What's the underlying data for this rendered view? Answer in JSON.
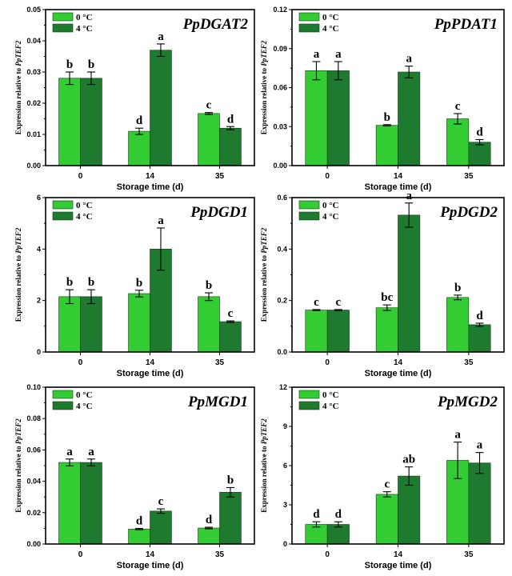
{
  "colors": {
    "light": "#33CC33",
    "dark": "#1E7A2E"
  },
  "chart_data": [
    {
      "type": "bar",
      "title": "PpDGAT2",
      "xlabel": "Storage time (d)",
      "ylabel_prefix": "Expression relative to ",
      "ylabel_gene": "PpTEF2",
      "categories": [
        "0",
        "14",
        "35"
      ],
      "ylim": [
        0,
        0.05
      ],
      "yticks": [
        "0.00",
        "0.01",
        "0.02",
        "0.03",
        "0.04",
        "0.05"
      ],
      "legend_position": "top-left",
      "series": [
        {
          "name": "0 °C",
          "values": [
            0.028,
            0.011,
            0.0167
          ],
          "errors": [
            0.002,
            0.001,
            0.0003
          ],
          "labels": [
            "b",
            "d",
            "c"
          ]
        },
        {
          "name": "4 °C",
          "values": [
            0.028,
            0.037,
            0.012
          ],
          "errors": [
            0.002,
            0.002,
            0.0005
          ],
          "labels": [
            "b",
            "a",
            "d"
          ]
        }
      ]
    },
    {
      "type": "bar",
      "title": "PpPDAT1",
      "xlabel": "Storage time (d)",
      "ylabel_prefix": "Expression relative to ",
      "ylabel_gene": "PpTEF2",
      "categories": [
        "0",
        "14",
        "35"
      ],
      "ylim": [
        0,
        0.12
      ],
      "yticks": [
        "0.00",
        "0.03",
        "0.06",
        "0.09",
        "0.12"
      ],
      "legend_position": "top-left",
      "series": [
        {
          "name": "0 °C",
          "values": [
            0.073,
            0.031,
            0.036
          ],
          "errors": [
            0.007,
            0.0005,
            0.004
          ],
          "labels": [
            "a",
            "b",
            "c"
          ]
        },
        {
          "name": "4 °C",
          "values": [
            0.073,
            0.072,
            0.018
          ],
          "errors": [
            0.007,
            0.0045,
            0.002
          ],
          "labels": [
            "a",
            "a",
            "d"
          ]
        }
      ]
    },
    {
      "type": "bar",
      "title": "PpDGD1",
      "xlabel": "Storage time (d)",
      "ylabel_prefix": "Expression relative to ",
      "ylabel_gene": "PpTEF2",
      "categories": [
        "0",
        "14",
        "35"
      ],
      "ylim": [
        0,
        6
      ],
      "yticks": [
        "0",
        "2",
        "4",
        "6"
      ],
      "legend_position": "top-left",
      "series": [
        {
          "name": "0 °C",
          "values": [
            2.15,
            2.27,
            2.15
          ],
          "errors": [
            0.27,
            0.13,
            0.15
          ],
          "labels": [
            "b",
            "b",
            "b"
          ]
        },
        {
          "name": "4 °C",
          "values": [
            2.15,
            4.0,
            1.18
          ],
          "errors": [
            0.27,
            0.82,
            0.03
          ],
          "labels": [
            "b",
            "a",
            "c"
          ]
        }
      ]
    },
    {
      "type": "bar",
      "title": "PpDGD2",
      "xlabel": "Storage time (d)",
      "ylabel_prefix": "Expression relative to ",
      "ylabel_gene": "PpTEF2",
      "categories": [
        "0",
        "14",
        "35"
      ],
      "ylim": [
        0,
        0.6
      ],
      "yticks": [
        "0.0",
        "0.2",
        "0.4",
        "0.6"
      ],
      "legend_position": "top-left",
      "series": [
        {
          "name": "0 °C",
          "values": [
            0.163,
            0.172,
            0.212
          ],
          "errors": [
            0.002,
            0.011,
            0.009
          ],
          "labels": [
            "c",
            "bc",
            "b"
          ]
        },
        {
          "name": "4 °C",
          "values": [
            0.163,
            0.532,
            0.106
          ],
          "errors": [
            0.002,
            0.047,
            0.006
          ],
          "labels": [
            "c",
            "a",
            "d"
          ]
        }
      ]
    },
    {
      "type": "bar",
      "title": "PpMGD1",
      "xlabel": "Storage time (d)",
      "ylabel_prefix": "Expression relative to ",
      "ylabel_gene": "PpTEF2",
      "categories": [
        "0",
        "14",
        "35"
      ],
      "ylim": [
        0,
        0.1
      ],
      "yticks": [
        "0.00",
        "0.02",
        "0.04",
        "0.06",
        "0.08",
        "0.10"
      ],
      "legend_position": "top-left",
      "series": [
        {
          "name": "0 °C",
          "values": [
            0.052,
            0.0095,
            0.0102
          ],
          "errors": [
            0.0022,
            0.0004,
            0.0005
          ],
          "labels": [
            "a",
            "d",
            "d"
          ]
        },
        {
          "name": "4 °C",
          "values": [
            0.052,
            0.021,
            0.033
          ],
          "errors": [
            0.0022,
            0.0014,
            0.003
          ],
          "labels": [
            "a",
            "c",
            "b"
          ]
        }
      ]
    },
    {
      "type": "bar",
      "title": "PpMGD2",
      "xlabel": "Storage time (d)",
      "ylabel_prefix": "Expression relative to ",
      "ylabel_gene": "PpTEF2",
      "categories": [
        "0",
        "14",
        "35"
      ],
      "ylim": [
        0,
        12
      ],
      "yticks": [
        "0",
        "3",
        "6",
        "9",
        "12"
      ],
      "legend_position": "top-left",
      "series": [
        {
          "name": "0 °C",
          "values": [
            1.5,
            3.8,
            6.4
          ],
          "errors": [
            0.2,
            0.2,
            1.4
          ],
          "labels": [
            "d",
            "c",
            "a"
          ]
        },
        {
          "name": "4 °C",
          "values": [
            1.5,
            5.2,
            6.2
          ],
          "errors": [
            0.2,
            0.7,
            0.8
          ],
          "labels": [
            "d",
            "ab",
            "a"
          ]
        }
      ]
    }
  ]
}
